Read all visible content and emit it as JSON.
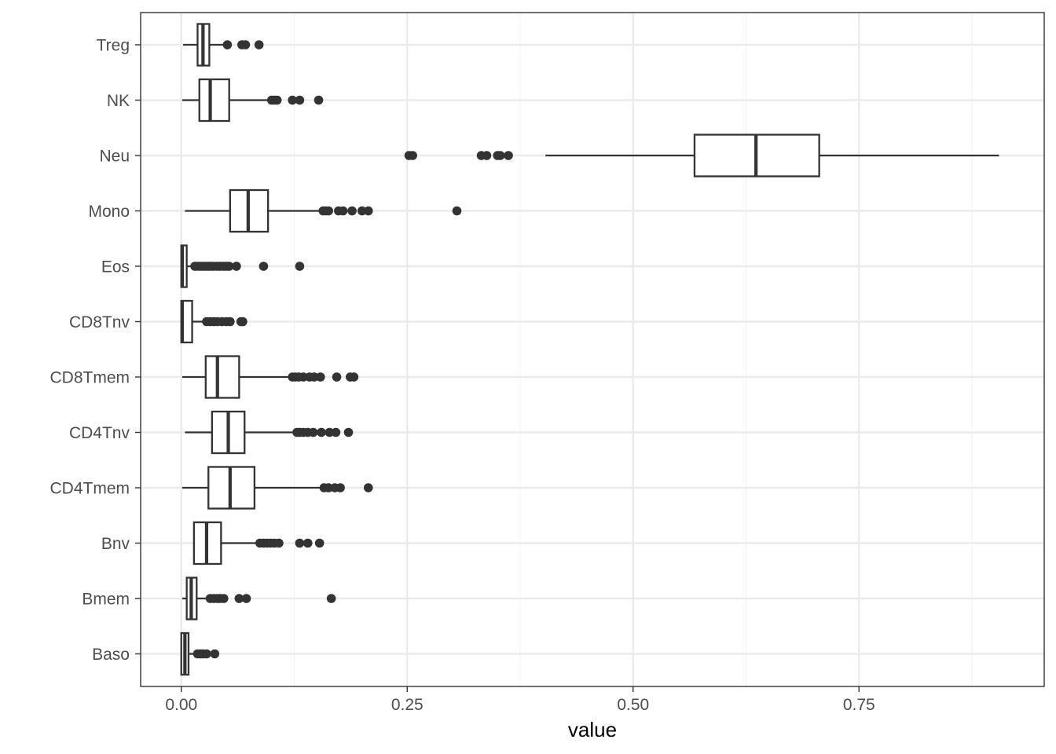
{
  "chart_data": {
    "type": "boxplot",
    "orientation": "horizontal",
    "xlabel": "value",
    "ylabel": "",
    "xlim": [
      -0.045,
      0.955
    ],
    "x_ticks": [
      0.0,
      0.25,
      0.5,
      0.75
    ],
    "x_tick_labels": [
      "0.00",
      "0.25",
      "0.50",
      "0.75"
    ],
    "grid": true,
    "categories": [
      "Treg",
      "NK",
      "Neu",
      "Mono",
      "Eos",
      "CD8Tnv",
      "CD8Tmem",
      "CD4Tnv",
      "CD4Tmem",
      "Bnv",
      "Bmem",
      "Baso"
    ],
    "boxes": [
      {
        "category": "Treg",
        "whisker_low": 0.002,
        "q1": 0.018,
        "median": 0.024,
        "q3": 0.031,
        "whisker_high": 0.05,
        "outliers": [
          0.051,
          0.067,
          0.071,
          0.086
        ]
      },
      {
        "category": "NK",
        "whisker_low": 0.001,
        "q1": 0.02,
        "median": 0.032,
        "q3": 0.053,
        "whisker_high": 0.1,
        "outliers": [
          0.1,
          0.103,
          0.106,
          0.123,
          0.131,
          0.152
        ]
      },
      {
        "category": "Neu",
        "whisker_low": 0.403,
        "q1": 0.568,
        "median": 0.636,
        "q3": 0.706,
        "whisker_high": 0.905,
        "outliers": [
          0.252,
          0.256,
          0.332,
          0.338,
          0.35,
          0.353,
          0.362
        ]
      },
      {
        "category": "Mono",
        "whisker_low": 0.004,
        "q1": 0.054,
        "median": 0.074,
        "q3": 0.096,
        "whisker_high": 0.157,
        "outliers": [
          0.157,
          0.16,
          0.163,
          0.174,
          0.179,
          0.189,
          0.2,
          0.207,
          0.305
        ]
      },
      {
        "category": "Eos",
        "whisker_low": 0.0,
        "q1": 0.0,
        "median": 0.001,
        "q3": 0.006,
        "whisker_high": 0.013,
        "outliers": [
          0.015,
          0.018,
          0.021,
          0.024,
          0.027,
          0.03,
          0.033,
          0.036,
          0.04,
          0.043,
          0.047,
          0.05,
          0.053,
          0.061,
          0.091,
          0.131
        ]
      },
      {
        "category": "CD8Tnv",
        "whisker_low": 0.0,
        "q1": 0.0,
        "median": 0.001,
        "q3": 0.012,
        "whisker_high": 0.028,
        "outliers": [
          0.028,
          0.032,
          0.036,
          0.04,
          0.045,
          0.05,
          0.054,
          0.066,
          0.068
        ]
      },
      {
        "category": "CD8Tmem",
        "whisker_low": 0.001,
        "q1": 0.027,
        "median": 0.04,
        "q3": 0.064,
        "whisker_high": 0.12,
        "outliers": [
          0.123,
          0.126,
          0.13,
          0.135,
          0.142,
          0.147,
          0.154,
          0.172,
          0.187,
          0.191
        ]
      },
      {
        "category": "CD4Tnv",
        "whisker_low": 0.004,
        "q1": 0.034,
        "median": 0.052,
        "q3": 0.07,
        "whisker_high": 0.127,
        "outliers": [
          0.128,
          0.131,
          0.135,
          0.14,
          0.146,
          0.155,
          0.164,
          0.171,
          0.185
        ]
      },
      {
        "category": "CD4Tmem",
        "whisker_low": 0.001,
        "q1": 0.03,
        "median": 0.054,
        "q3": 0.081,
        "whisker_high": 0.156,
        "outliers": [
          0.158,
          0.163,
          0.17,
          0.176,
          0.207
        ]
      },
      {
        "category": "Bnv",
        "whisker_low": 0.013,
        "q1": 0.014,
        "median": 0.028,
        "q3": 0.044,
        "whisker_high": 0.085,
        "outliers": [
          0.087,
          0.091,
          0.095,
          0.099,
          0.103,
          0.108,
          0.131,
          0.14,
          0.153
        ]
      },
      {
        "category": "Bmem",
        "whisker_low": 0.001,
        "q1": 0.006,
        "median": 0.011,
        "q3": 0.017,
        "whisker_high": 0.03,
        "outliers": [
          0.032,
          0.036,
          0.04,
          0.043,
          0.047,
          0.064,
          0.072,
          0.166
        ]
      },
      {
        "category": "Baso",
        "whisker_low": 0.0,
        "q1": 0.0,
        "median": 0.004,
        "q3": 0.008,
        "whisker_high": 0.015,
        "outliers": [
          0.018,
          0.021,
          0.024,
          0.028,
          0.037
        ]
      }
    ]
  },
  "colors": {
    "box_stroke": "#333333",
    "box_fill": "#ffffff",
    "outlier": "#333333",
    "grid_major": "#ebebeb",
    "grid_minor": "#f2f2f2",
    "panel_border": "#333333",
    "tick_text": "#4d4d4d",
    "axis_title": "#000000"
  }
}
